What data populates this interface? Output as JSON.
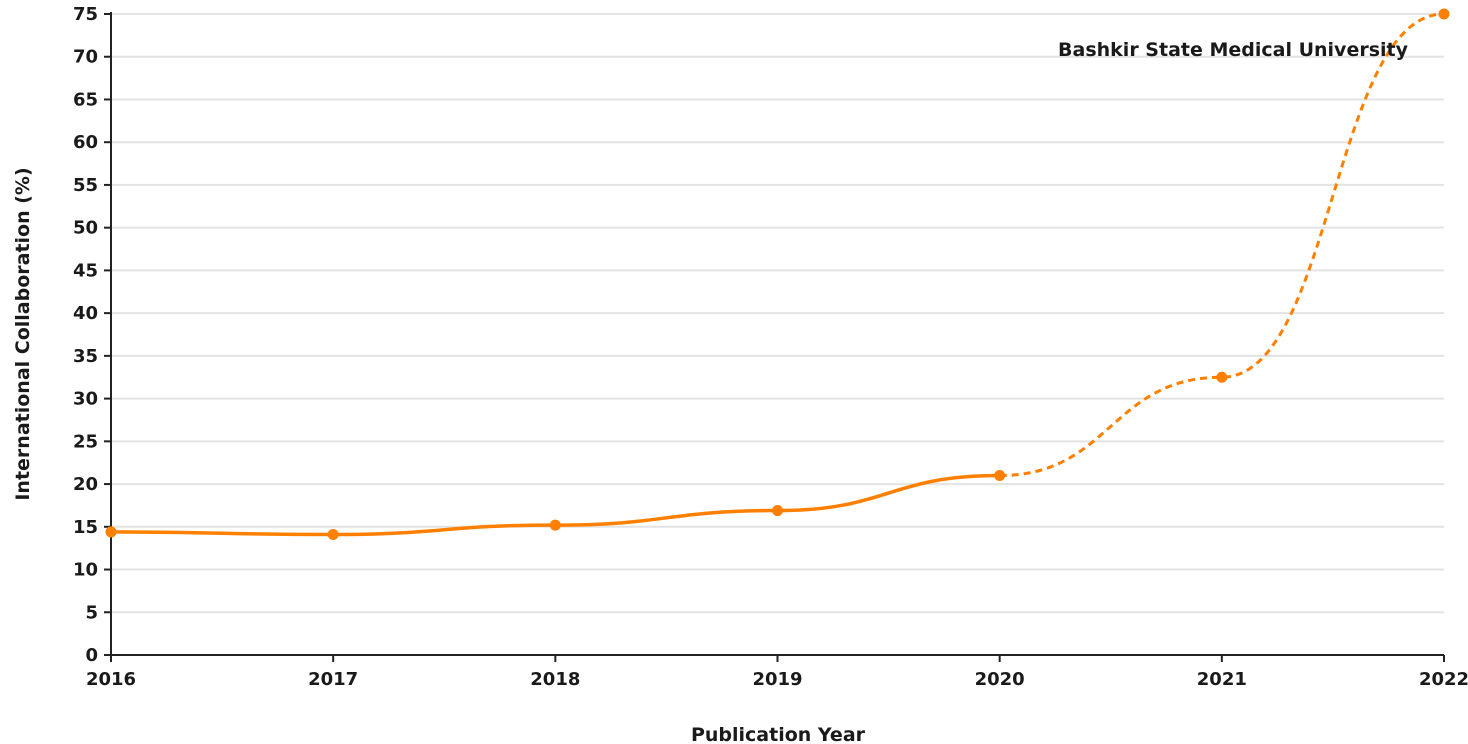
{
  "chart_data": {
    "type": "line",
    "title": "",
    "xlabel": "Publication Year",
    "ylabel": "International Collaboration (%)",
    "x": [
      2016,
      2017,
      2018,
      2019,
      2020,
      2021,
      2022
    ],
    "xlim": [
      2016,
      2022
    ],
    "ylim": [
      0,
      75
    ],
    "y_ticks": [
      0,
      5,
      10,
      15,
      20,
      25,
      30,
      35,
      40,
      45,
      50,
      55,
      60,
      65,
      70,
      75
    ],
    "grid": true,
    "series": [
      {
        "name": "Bashkir State Medical University",
        "color": "#ff8000",
        "values": [
          14.4,
          14.1,
          15.2,
          16.9,
          21.0,
          32.5,
          75.0
        ],
        "solid_until": 2020,
        "dashed_after": 2020
      }
    ],
    "annotations": [
      {
        "text": "Bashkir State Medical University",
        "position": "top-right"
      }
    ]
  }
}
